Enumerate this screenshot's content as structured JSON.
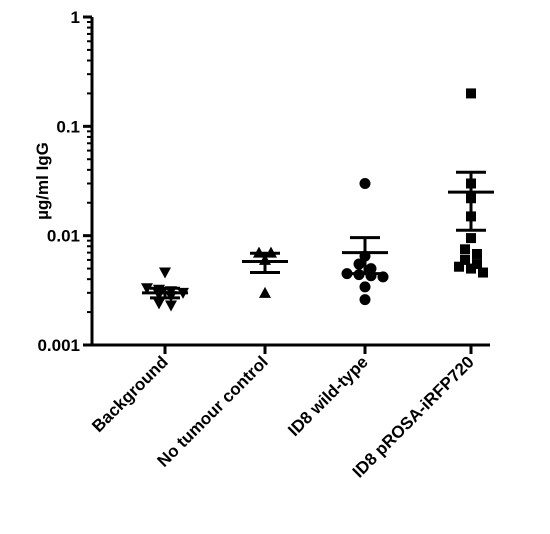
{
  "chart_data": {
    "type": "scatter",
    "title": "",
    "xlabel": "",
    "ylabel": "µg/ml IgG",
    "yscale": "log",
    "ylim": [
      0.001,
      1
    ],
    "yticks": [
      {
        "value": 1,
        "label": "1"
      },
      {
        "value": 0.1,
        "label": "0.1"
      },
      {
        "value": 0.01,
        "label": "0.01"
      },
      {
        "value": 0.001,
        "label": "0.001"
      }
    ],
    "grid": false,
    "legend": "none",
    "categories": [
      "Background",
      "No tumour control",
      "ID8 wild-type",
      "ID8 pROSA-iRFP720"
    ],
    "groups": [
      {
        "category": "Background",
        "marker": "triangle-down",
        "points": [
          0.0046,
          0.0033,
          0.0032,
          0.0031,
          0.003,
          0.0029,
          0.0028,
          0.0024,
          0.0023
        ],
        "mean": 0.003,
        "sem": [
          0.0027,
          0.0033
        ]
      },
      {
        "category": "No tumour control",
        "marker": "triangle-up",
        "points": [
          0.007,
          0.007,
          0.006,
          0.003
        ],
        "mean": 0.0058,
        "sem": [
          0.0046,
          0.0069
        ]
      },
      {
        "category": "ID8 wild-type",
        "marker": "circle",
        "points": [
          0.03,
          0.0065,
          0.0055,
          0.005,
          0.0045,
          0.0044,
          0.0043,
          0.0042,
          0.0034,
          0.0026
        ],
        "mean": 0.007,
        "sem": [
          0.0045,
          0.0096
        ]
      },
      {
        "category": "ID8 pROSA-iRFP720",
        "marker": "square",
        "points": [
          0.2,
          0.03,
          0.022,
          0.015,
          0.0095,
          0.0075,
          0.0068,
          0.006,
          0.0055,
          0.0052,
          0.005,
          0.0046
        ],
        "mean": 0.025,
        "sem": [
          0.0112,
          0.038
        ]
      }
    ],
    "colors": {
      "marker": "#000000",
      "axis": "#000000"
    }
  }
}
